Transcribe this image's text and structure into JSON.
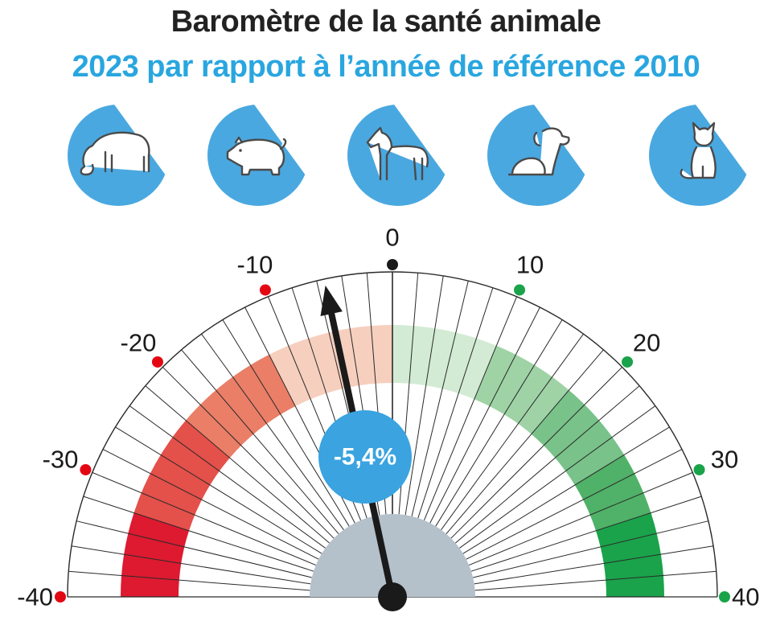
{
  "title": "Baromètre de la santé animale",
  "subtitle": "2023 par rapport à l’année de référence 2010",
  "colors": {
    "title": "#222222",
    "subtitle": "#29a6df",
    "icon_circle": "#4aa8e0",
    "icon_light": "#dbeef9",
    "hub": "#b4c0ca",
    "needle": "#1a1a1a",
    "value_bubble": "#3aa3e0",
    "negative_dot": "#e30613",
    "positive_dot": "#1aa34a",
    "zero_dot": "#1a1a1a"
  },
  "icons": [
    "cow-icon",
    "pig-icon",
    "horse-icon",
    "dog-icon",
    "cat-icon"
  ],
  "chart_data": {
    "type": "gauge",
    "min": -40,
    "max": 40,
    "major_ticks": [
      -40,
      -30,
      -20,
      -10,
      0,
      10,
      20,
      30,
      40
    ],
    "tick_labels": [
      "-40",
      "-30",
      "-20",
      "-10",
      "0",
      "10",
      "20",
      "30",
      "40"
    ],
    "minor_step": 2,
    "value": -5.4,
    "value_label": "-5,4%",
    "bands": [
      {
        "from": -40,
        "to": -32,
        "color": "#dd1a30"
      },
      {
        "from": -32,
        "to": -22,
        "color": "#e4504a"
      },
      {
        "from": -22,
        "to": -12,
        "color": "#ea7e67"
      },
      {
        "from": -12,
        "to": 0,
        "color": "#f6cfbf"
      },
      {
        "from": 0,
        "to": 10,
        "color": "#d3ebd4"
      },
      {
        "from": 10,
        "to": 18,
        "color": "#9fd3a6"
      },
      {
        "from": 18,
        "to": 26,
        "color": "#79c28a"
      },
      {
        "from": 26,
        "to": 32,
        "color": "#50b168"
      },
      {
        "from": 32,
        "to": 40,
        "color": "#1aa34a"
      }
    ]
  }
}
